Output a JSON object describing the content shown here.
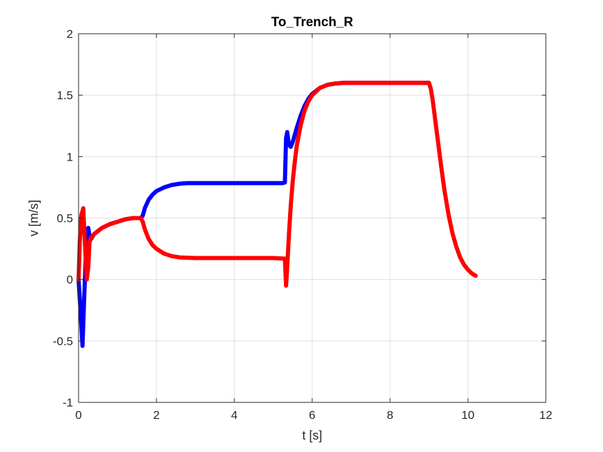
{
  "chart_data": {
    "type": "line",
    "title": "To_Trench_R",
    "xlabel": "t [s]",
    "ylabel": "v [m/s]",
    "xlim": [
      0,
      12
    ],
    "ylim": [
      -1,
      2
    ],
    "xticks": [
      0,
      2,
      4,
      6,
      8,
      10,
      12
    ],
    "yticks": [
      -1,
      -0.5,
      0,
      0.5,
      1,
      1.5,
      2
    ],
    "xtick_labels": [
      "0",
      "2",
      "4",
      "6",
      "8",
      "10",
      "12"
    ],
    "ytick_labels": [
      "-1",
      "-0.5",
      "0",
      "0.5",
      "1",
      "1.5",
      "2"
    ],
    "grid": true,
    "colors": {
      "blue": "#0000ff",
      "red": "#ff0000"
    },
    "series": [
      {
        "color": "#0000ff",
        "x": [
          0.0,
          0.05,
          0.1,
          0.15,
          0.2,
          0.25,
          0.3,
          0.4,
          0.6,
          0.8,
          1.0,
          1.2,
          1.4,
          1.6,
          1.65,
          1.7,
          1.8,
          1.9,
          2.0,
          2.2,
          2.4,
          2.6,
          2.8,
          3.0,
          3.5,
          4.0,
          4.5,
          5.0,
          5.25,
          5.3,
          5.33,
          5.36,
          5.4,
          5.45,
          5.5,
          5.6,
          5.7,
          5.8,
          5.9,
          6.0,
          6.2,
          6.4,
          6.6,
          6.8,
          7.0,
          7.5,
          8.0,
          8.5,
          9.0
        ],
        "y": [
          0.0,
          -0.25,
          -0.54,
          -0.1,
          0.3,
          0.42,
          0.32,
          0.37,
          0.42,
          0.45,
          0.47,
          0.49,
          0.5,
          0.5,
          0.52,
          0.58,
          0.65,
          0.69,
          0.72,
          0.75,
          0.77,
          0.78,
          0.785,
          0.785,
          0.785,
          0.785,
          0.785,
          0.785,
          0.785,
          0.79,
          1.15,
          1.2,
          1.1,
          1.08,
          1.12,
          1.23,
          1.33,
          1.41,
          1.47,
          1.51,
          1.56,
          1.585,
          1.595,
          1.6,
          1.6,
          1.6,
          1.6,
          1.6,
          1.6
        ]
      },
      {
        "color": "#ff0000",
        "x": [
          0.0,
          0.03,
          0.07,
          0.12,
          0.17,
          0.21,
          0.25,
          0.28,
          0.32,
          0.4,
          0.6,
          0.8,
          1.0,
          1.2,
          1.4,
          1.6,
          1.65,
          1.7,
          1.8,
          1.9,
          2.0,
          2.2,
          2.4,
          2.6,
          3.0,
          3.5,
          4.0,
          4.5,
          5.0,
          5.3,
          5.33,
          5.36,
          5.4,
          5.45,
          5.5,
          5.55,
          5.6,
          5.7,
          5.8,
          5.9,
          6.0,
          6.2,
          6.4,
          6.6,
          6.8,
          7.0,
          7.5,
          8.0,
          8.5,
          9.0,
          9.05,
          9.1,
          9.2,
          9.3,
          9.4,
          9.5,
          9.6,
          9.7,
          9.8,
          9.9,
          10.0,
          10.1,
          10.2
        ],
        "y": [
          0.0,
          0.3,
          0.52,
          0.58,
          0.25,
          0.0,
          0.1,
          0.3,
          0.34,
          0.37,
          0.42,
          0.45,
          0.47,
          0.49,
          0.5,
          0.5,
          0.47,
          0.41,
          0.33,
          0.28,
          0.25,
          0.21,
          0.19,
          0.18,
          0.175,
          0.175,
          0.175,
          0.175,
          0.175,
          0.17,
          -0.05,
          0.1,
          0.35,
          0.6,
          0.8,
          0.95,
          1.08,
          1.25,
          1.37,
          1.45,
          1.5,
          1.56,
          1.585,
          1.595,
          1.6,
          1.6,
          1.6,
          1.6,
          1.6,
          1.6,
          1.55,
          1.45,
          1.2,
          0.95,
          0.72,
          0.53,
          0.38,
          0.27,
          0.18,
          0.12,
          0.08,
          0.05,
          0.03
        ]
      }
    ]
  }
}
